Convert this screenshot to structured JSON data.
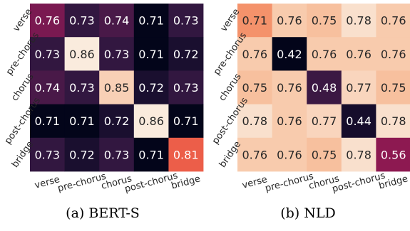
{
  "chart_data": [
    {
      "type": "heatmap",
      "caption": "(a) BERT-S",
      "rows": [
        "verse",
        "pre-chorus",
        "chorus",
        "post-chorus",
        "bridge"
      ],
      "columns": [
        "verse",
        "pre-chorus",
        "chorus",
        "post-chorus",
        "bridge"
      ],
      "values": [
        [
          "0.76",
          "0.73",
          "0.74",
          "0.71",
          "0.73"
        ],
        [
          "0.73",
          "0.86",
          "0.73",
          "0.71",
          "0.72"
        ],
        [
          "0.74",
          "0.73",
          "0.85",
          "0.72",
          "0.73"
        ],
        [
          "0.71",
          "0.71",
          "0.72",
          "0.86",
          "0.71"
        ],
        [
          "0.73",
          "0.72",
          "0.73",
          "0.71",
          "0.81"
        ]
      ],
      "colormap": "rocket",
      "color_range": [
        0.71,
        0.86
      ]
    },
    {
      "type": "heatmap",
      "caption": "(b) NLD",
      "rows": [
        "verse",
        "pre-chorus",
        "chorus",
        "post-chorus",
        "bridge"
      ],
      "columns": [
        "verse",
        "pre-chorus",
        "chorus",
        "post-chorus",
        "bridge"
      ],
      "values": [
        [
          "0.71",
          "0.76",
          "0.75",
          "0.78",
          "0.76"
        ],
        [
          "0.76",
          "0.42",
          "0.76",
          "0.76",
          "0.76"
        ],
        [
          "0.75",
          "0.76",
          "0.48",
          "0.77",
          "0.75"
        ],
        [
          "0.78",
          "0.76",
          "0.77",
          "0.44",
          "0.78"
        ],
        [
          "0.76",
          "0.76",
          "0.75",
          "0.78",
          "0.56"
        ]
      ],
      "colormap": "rocket",
      "color_range": [
        0.42,
        0.79
      ]
    }
  ]
}
